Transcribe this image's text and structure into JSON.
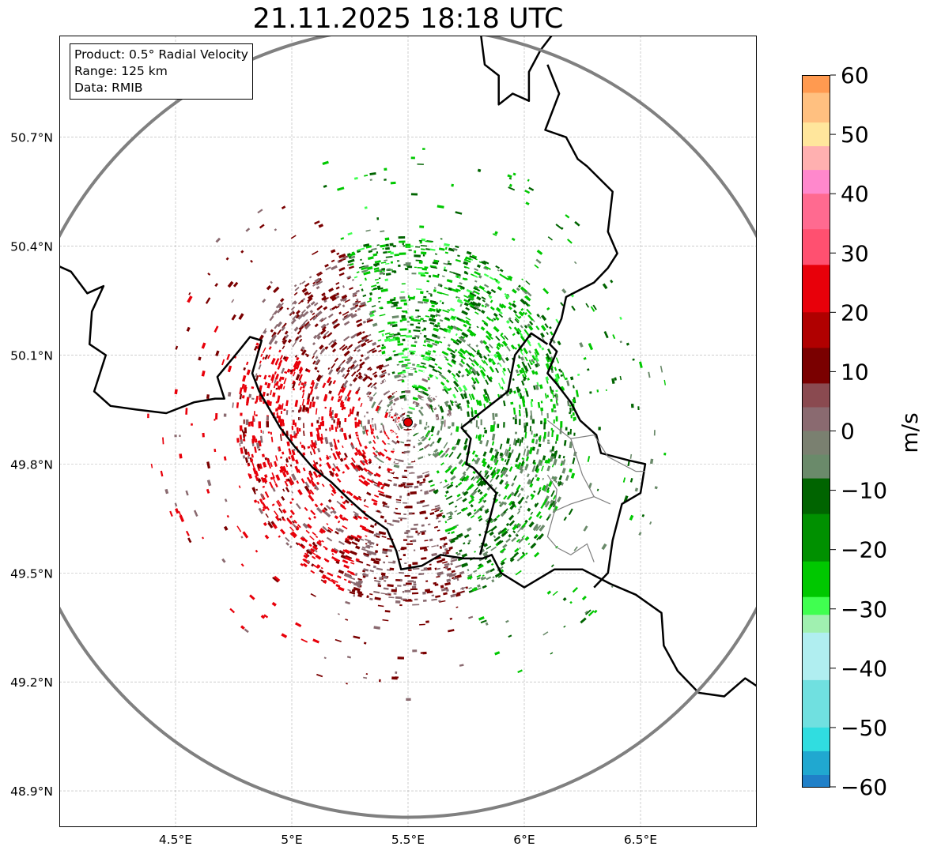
{
  "title": "21.11.2025 18:18 UTC",
  "info": {
    "product": "Product: 0.5° Radial Velocity",
    "range": "Range: 125 km",
    "data": "Data: RMIB"
  },
  "axes": {
    "lon_range": [
      4.0,
      7.0
    ],
    "lat_range": [
      48.8,
      50.98
    ],
    "lon_ticks": [
      4.5,
      5.0,
      5.5,
      6.0,
      6.5
    ],
    "lon_labels": [
      "4.5°E",
      "5°E",
      "5.5°E",
      "6°E",
      "6.5°E"
    ],
    "lat_ticks": [
      48.9,
      49.2,
      49.5,
      49.8,
      50.1,
      50.4,
      50.7
    ],
    "lat_labels": [
      "48.9°N",
      "49.2°N",
      "49.5°N",
      "49.8°N",
      "50.1°N",
      "50.4°N",
      "50.7°N"
    ]
  },
  "radar": {
    "lon": 5.5,
    "lat": 49.915
  },
  "colorbar": {
    "label": "m/s",
    "min": -60,
    "max": 60,
    "ticks": [
      60,
      50,
      40,
      30,
      20,
      10,
      0,
      -10,
      -20,
      -30,
      -40,
      -50,
      -60
    ],
    "tick_labels": [
      "60",
      "50",
      "40",
      "30",
      "20",
      "10",
      "0",
      "−10",
      "−20",
      "−30",
      "−40",
      "−50",
      "−60"
    ],
    "colors": {
      "positive_far": "#ff9a50",
      "orange": "#ffc080",
      "yellow": "#ffe69c",
      "pink": "#ff88cc",
      "rose": "#ff5070",
      "red": "#e8000a",
      "dark_red": "#7a0000",
      "zero_brown": "#8a6a70",
      "zero_green": "#6a8a6a",
      "dark_green": "#006400",
      "green": "#00c800",
      "lime": "#40ff50",
      "light_green": "#a0f0b0",
      "light_cyan": "#b0eef0",
      "cyan": "#30dde0",
      "blue": "#2080c8"
    }
  },
  "colors": {
    "border": "#000000",
    "range_ring": "#808080",
    "region_border": "#808080",
    "grid": "#b0b0b0",
    "radar_marker": "#e00000"
  }
}
